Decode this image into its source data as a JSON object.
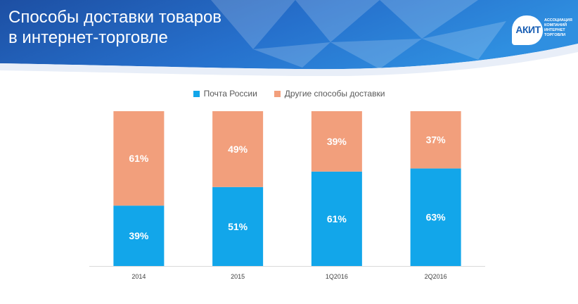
{
  "header": {
    "title_line1": "Способы доставки товаров",
    "title_line2": "в интернет-торговле",
    "logo_text": "АКИТ",
    "logo_sub": [
      "АССОЦИАЦИЯ",
      "КОМПАНИЙ",
      "ИНТЕРНЕТ",
      "ТОРГОВЛИ"
    ]
  },
  "colors": {
    "header_dark": "#1d4fa3",
    "header_light": "#2f8fe0",
    "series1": "#12a6ea",
    "series2": "#f29f7c",
    "axis": "#d9d9d9",
    "tick_text": "#404040"
  },
  "chart_data": {
    "type": "bar",
    "stacked": true,
    "categories": [
      "2014",
      "2015",
      "1Q2016",
      "2Q2016"
    ],
    "series": [
      {
        "name": "Почта России",
        "values": [
          39,
          51,
          61,
          63
        ],
        "labels": [
          "39%",
          "51%",
          "61%",
          "63%"
        ]
      },
      {
        "name": "Другие способы  доставки",
        "values": [
          61,
          49,
          39,
          37
        ],
        "labels": [
          "61%",
          "49%",
          "39%",
          "37%"
        ]
      }
    ],
    "ylim": [
      0,
      100
    ],
    "legend_position": "top-center",
    "grid": false
  }
}
